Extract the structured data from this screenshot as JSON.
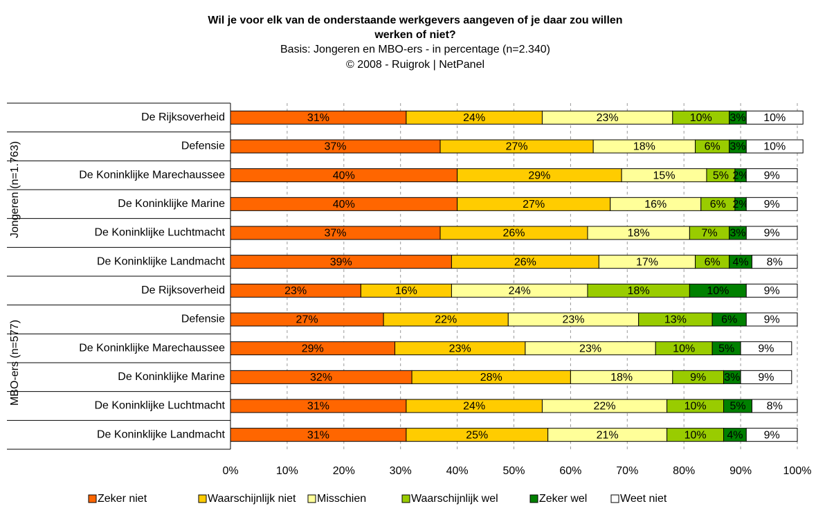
{
  "chart_data": {
    "type": "stacked-bar-horizontal",
    "title": [
      "Wil je voor elk van de onderstaande werkgevers aangeven of je daar zou willen",
      "werken of niet?"
    ],
    "subtitle": [
      "Basis: Jongeren en MBO-ers - in percentage (n=2.340)",
      "©  2008 - Ruigrok | NetPanel"
    ],
    "groups": [
      "Jongeren (n=1.763)",
      "MBO-ers (n=577)"
    ],
    "categories": [
      "De Rijksoverheid",
      "Defensie",
      "De Koninklijke Marechaussee",
      "De Koninklijke Marine",
      "De Koninklijke Luchtmacht",
      "De Koninklijke Landmacht",
      "De Rijksoverheid",
      "Defensie",
      "De Koninklijke Marechaussee",
      "De Koninklijke Marine",
      "De Koninklijke Luchtmacht",
      "De Koninklijke Landmacht"
    ],
    "series": [
      {
        "name": "Zeker niet",
        "color": "#ff6600",
        "label_color": "#333333",
        "values": [
          31,
          37,
          40,
          40,
          37,
          39,
          23,
          27,
          29,
          32,
          31,
          31
        ],
        "value_labels": [
          "31%",
          "37%",
          "40%",
          "40%",
          "37%",
          "39%",
          "23%",
          "27%",
          "29%",
          "32%",
          "31%",
          "31%"
        ]
      },
      {
        "name": "Waarschijnlijk niet",
        "color": "#ffcc00",
        "label_color": "#333333",
        "values": [
          24,
          27,
          29,
          27,
          26,
          26,
          16,
          22,
          23,
          28,
          24,
          25
        ],
        "value_labels": [
          "24%",
          "27%",
          "29%",
          "27%",
          "26%",
          "26%",
          "16%",
          "22%",
          "23%",
          "28%",
          "24%",
          "25%"
        ]
      },
      {
        "name": "Misschien",
        "color": "#ffff99",
        "label_color": "#333333",
        "values": [
          23,
          18,
          15,
          16,
          18,
          17,
          24,
          23,
          23,
          18,
          22,
          21
        ],
        "value_labels": [
          "23%",
          "18%",
          "15%",
          "16%",
          "18%",
          "17%",
          "24%",
          "23%",
          "23%",
          "18%",
          "22%",
          "21%"
        ]
      },
      {
        "name": "Waarschijnlijk wel",
        "color": "#99cc00",
        "label_color": "#333333",
        "values": [
          10,
          6,
          5,
          6,
          7,
          6,
          18,
          13,
          10,
          9,
          10,
          10
        ],
        "value_labels": [
          "10%",
          "6%",
          "5%",
          "6%",
          "7%",
          "6%",
          "18%",
          "13%",
          "10%",
          "9%",
          "10%",
          "10%"
        ]
      },
      {
        "name": "Zeker wel",
        "color": "#008000",
        "label_color": "#ffffff",
        "values": [
          3,
          3,
          2,
          2,
          3,
          4,
          10,
          6,
          5,
          3,
          5,
          4
        ],
        "value_labels": [
          "3%",
          "3%",
          "2%",
          "2%",
          "3%",
          "4%",
          "10%",
          "6%",
          "5%",
          "3%",
          "5%",
          "4%"
        ]
      },
      {
        "name": "Weet niet",
        "color": "#ffffff",
        "label_color": "#000000",
        "values": [
          10,
          10,
          9,
          9,
          9,
          8,
          9,
          9,
          9,
          9,
          8,
          9
        ],
        "value_labels": [
          "10%",
          "10%",
          "9%",
          "9%",
          "9%",
          "8%",
          "9%",
          "9%",
          "9%",
          "9%",
          "8%",
          "9%"
        ]
      }
    ],
    "xlim": [
      0,
      100
    ],
    "xticks": [
      {
        "value": 0,
        "label": "0%"
      },
      {
        "value": 10,
        "label": "10%"
      },
      {
        "value": 20,
        "label": "20%"
      },
      {
        "value": 30,
        "label": "30%"
      },
      {
        "value": 40,
        "label": "40%"
      },
      {
        "value": 50,
        "label": "50%"
      },
      {
        "value": 60,
        "label": "60%"
      },
      {
        "value": 70,
        "label": "70%"
      },
      {
        "value": 80,
        "label": "80%"
      },
      {
        "value": 90,
        "label": "90%"
      },
      {
        "value": 100,
        "label": "100%"
      }
    ],
    "grid": true,
    "legend": "bottom"
  }
}
